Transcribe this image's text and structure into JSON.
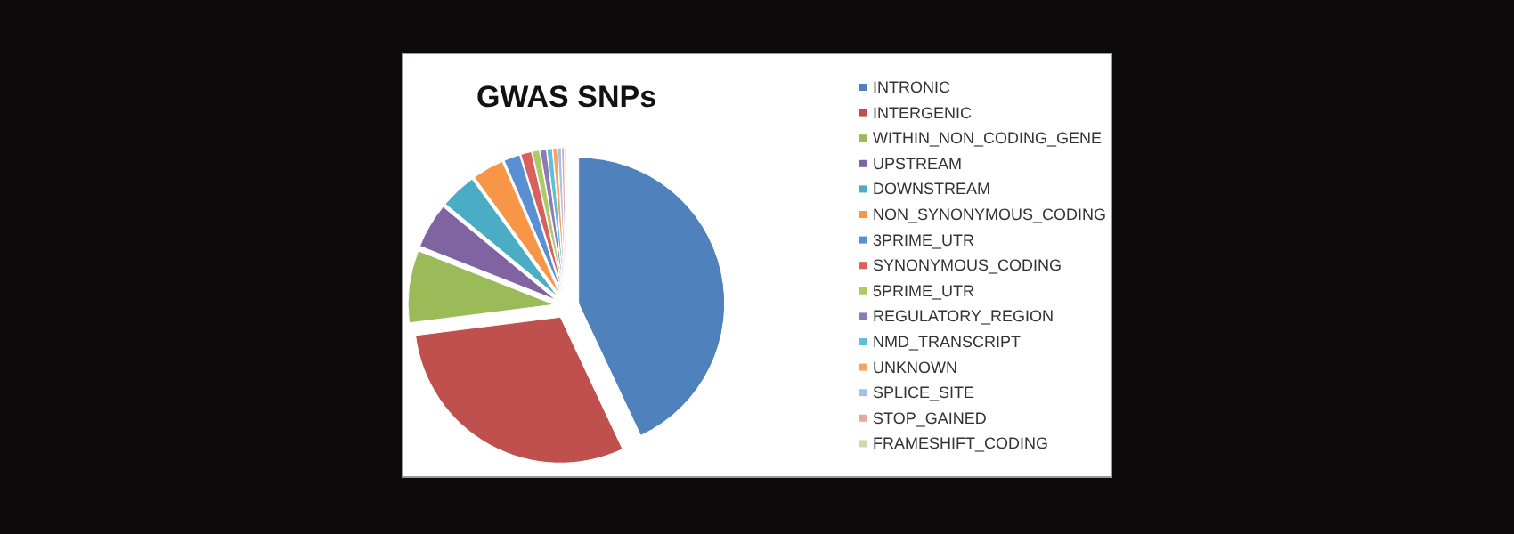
{
  "chart_data": {
    "type": "pie",
    "title": "GWAS SNPs",
    "legend": "right",
    "categories": [
      "INTRONIC",
      "INTERGENIC",
      "WITHIN_NON_CODING_GENE",
      "UPSTREAM",
      "DOWNSTREAM",
      "NON_SYNONYMOUS_CODING",
      "3PRIME_UTR",
      "SYNONYMOUS_CODING",
      "5PRIME_UTR",
      "REGULATORY_REGION",
      "NMD_TRANSCRIPT",
      "UNKNOWN",
      "SPLICE_SITE",
      "STOP_GAINED",
      "FRAMESHIFT_CODING"
    ],
    "values": [
      43,
      30,
      8,
      5,
      4,
      3.5,
      1.8,
      1.2,
      0.8,
      0.7,
      0.6,
      0.5,
      0.4,
      0.3,
      0.2
    ],
    "colors": [
      "#4f81bd",
      "#c0504d",
      "#9bbb59",
      "#8064a2",
      "#4bacc6",
      "#f79646",
      "#5b8fd4",
      "#d9605c",
      "#a9cc66",
      "#9079b5",
      "#5cc0da",
      "#f9a560",
      "#a6c0e6",
      "#e6a6a5",
      "#c9dcaa"
    ]
  }
}
